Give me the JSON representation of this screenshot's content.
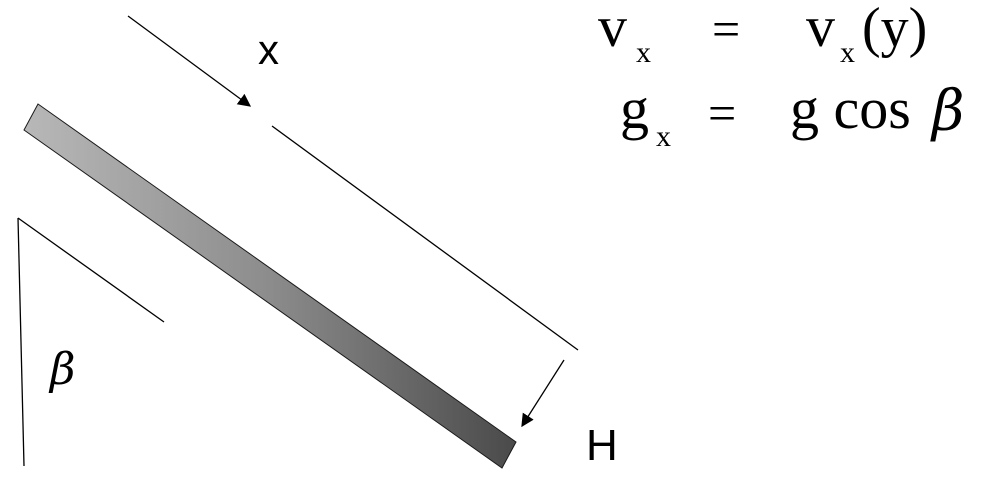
{
  "labels": {
    "x_axis": "x",
    "height": "H",
    "angle": "β"
  },
  "equations": {
    "line1": {
      "lhs_symbol": "v",
      "lhs_subscript": "x",
      "equals": "=",
      "rhs_symbol": "v",
      "rhs_subscript": "x",
      "rhs_argument": "(y)"
    },
    "line2": {
      "lhs_symbol": "g",
      "lhs_subscript": "x",
      "equals": "=",
      "rhs_text": "g cos",
      "rhs_greek": "β"
    }
  },
  "colors": {
    "plate_dark": "#4a4a4a",
    "plate_mid": "#8c8c8c",
    "plate_light": "#b8b8b8",
    "line": "#000000"
  }
}
